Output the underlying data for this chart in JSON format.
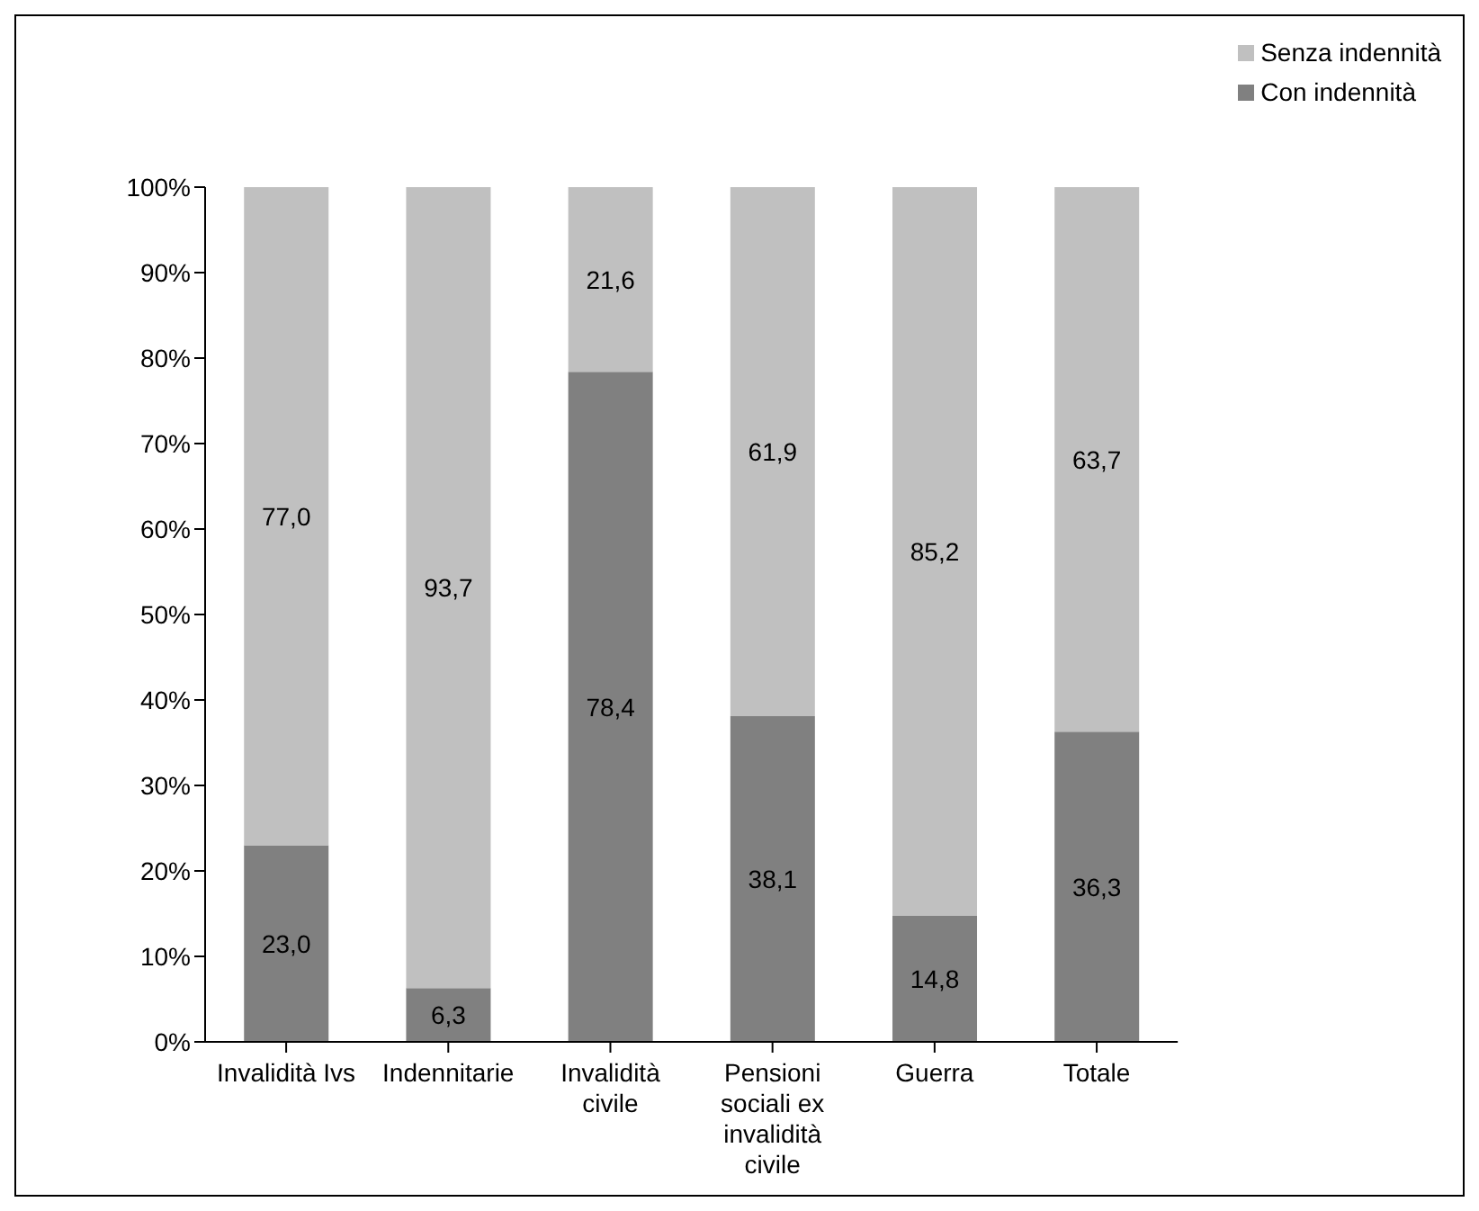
{
  "chart_data": {
    "type": "bar",
    "stacked": true,
    "categories": [
      "Invalidità Ivs",
      "Indennitarie",
      "Invalidità civile",
      "Pensioni sociali ex invalidità civile",
      "Guerra",
      "Totale"
    ],
    "series": [
      {
        "name": "Con indennità",
        "color": "#808080",
        "values": [
          23.0,
          6.3,
          78.4,
          38.1,
          14.8,
          36.3
        ],
        "value_labels": [
          "23,0",
          "6,3",
          "78,4",
          "38,1",
          "14,8",
          "36,3"
        ]
      },
      {
        "name": "Senza indennità",
        "color": "#c0c0c0",
        "values": [
          77.0,
          93.7,
          21.6,
          61.9,
          85.2,
          63.7
        ],
        "value_labels": [
          "77,0",
          "93,7",
          "21,6",
          "61,9",
          "85,2",
          "63,7"
        ]
      }
    ],
    "ylim": [
      0,
      100
    ],
    "yticks": [
      {
        "value": 0,
        "label": "0%"
      },
      {
        "value": 10,
        "label": "10%"
      },
      {
        "value": 20,
        "label": "20%"
      },
      {
        "value": 30,
        "label": "30%"
      },
      {
        "value": 40,
        "label": "40%"
      },
      {
        "value": 50,
        "label": "50%"
      },
      {
        "value": 60,
        "label": "60%"
      },
      {
        "value": 70,
        "label": "70%"
      },
      {
        "value": 80,
        "label": "80%"
      },
      {
        "value": 90,
        "label": "90%"
      },
      {
        "value": 100,
        "label": "100%"
      }
    ],
    "grid": false,
    "legend": "top right"
  }
}
